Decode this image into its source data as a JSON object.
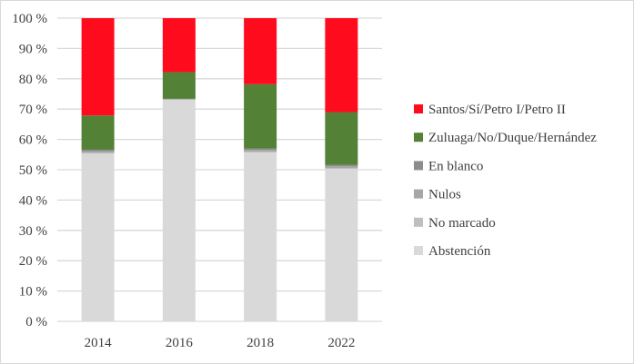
{
  "chart_data": {
    "type": "bar",
    "stacked": true,
    "percent": true,
    "title": "",
    "xlabel": "",
    "ylabel": "",
    "ylim": [
      0,
      100
    ],
    "yticks": [
      "0 %",
      "10 %",
      "20 %",
      "30 %",
      "40 %",
      "50 %",
      "60 %",
      "70 %",
      "80 %",
      "90 %",
      "100 %"
    ],
    "grid": true,
    "legend_position": "right",
    "categories": [
      "2014",
      "2016",
      "2018",
      "2022"
    ],
    "series": [
      {
        "name": "Abstención",
        "color": "#d9d9d9",
        "values": [
          55.3,
          73.0,
          55.7,
          50.3
        ]
      },
      {
        "name": "No marcado",
        "color": "#bfbfbf",
        "values": [
          0.3,
          0.1,
          0.3,
          0.3
        ]
      },
      {
        "name": "Nulos",
        "color": "#a6a6a6",
        "values": [
          0.5,
          0.2,
          0.5,
          0.5
        ]
      },
      {
        "name": "En blanco",
        "color": "#8c8c8c",
        "values": [
          0.5,
          0.1,
          0.5,
          0.5
        ]
      },
      {
        "name": "Zuluaga/No/Duque/Hernández",
        "color": "#538135",
        "values": [
          11.3,
          8.8,
          21.2,
          17.4
        ]
      },
      {
        "name": "Santos/Sí/Petro I/Petro II",
        "color": "#fe0c1e",
        "values": [
          32.1,
          17.8,
          21.8,
          31.0
        ]
      }
    ]
  }
}
